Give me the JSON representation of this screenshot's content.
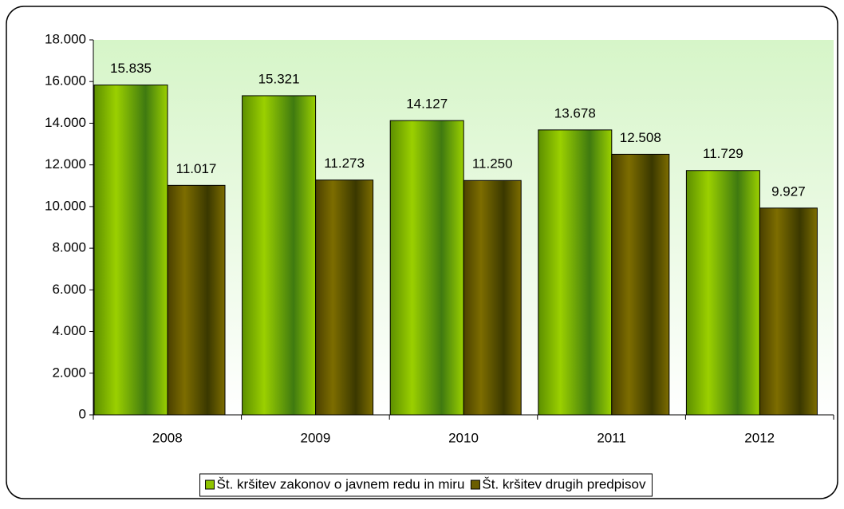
{
  "chart_data": {
    "type": "bar",
    "categories": [
      "2008",
      "2009",
      "2010",
      "2011",
      "2012"
    ],
    "series": [
      {
        "name": "Št. kršitev zakonov o javnem redu in miru",
        "color": "#8fc400",
        "values": [
          15835,
          15321,
          14127,
          13678,
          11729
        ],
        "value_labels": [
          "15.835",
          "15.321",
          "14.127",
          "13.678",
          "11.729"
        ]
      },
      {
        "name": "Št. kršitev drugih predpisov",
        "color": "#6b5e00",
        "values": [
          11017,
          11273,
          11250,
          12508,
          9927
        ],
        "value_labels": [
          "11.017",
          "11.273",
          "11.250",
          "12.508",
          "9.927"
        ]
      }
    ],
    "ylim": [
      0,
      18000
    ],
    "yticks": [
      0,
      {
        "value": 2000,
        "label": "2.000"
      },
      {
        "value": 4000,
        "label": "4.000"
      },
      {
        "value": 6000,
        "label": "6.000"
      },
      {
        "value": 8000,
        "label": "8.000"
      },
      {
        "value": 10000,
        "label": "10.000"
      },
      {
        "value": 12000,
        "label": "12.000"
      },
      {
        "value": 14000,
        "label": "14.000"
      },
      {
        "value": 16000,
        "label": "16.000"
      },
      {
        "value": 18000,
        "label": "18.000"
      }
    ],
    "legend": "bottom"
  }
}
